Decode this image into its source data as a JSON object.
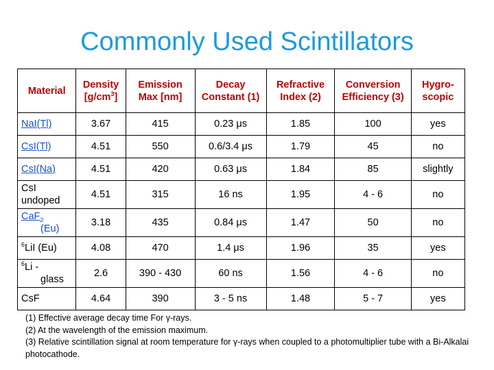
{
  "title": "Commonly Used Scintillators",
  "headers": {
    "material": "Material",
    "density": "Density [g/cm",
    "density_sup": "3",
    "density_end": "]",
    "emission": "Emission Max  [nm]",
    "decay": "Decay Constant (1)",
    "refractive": "Refractive Index (2)",
    "conversion": "Conversion Efficiency (3)",
    "hygro": "Hygro-scopic"
  },
  "rows": [
    {
      "m1": "NaI(Tl)",
      "density": "3.67",
      "emission": "415",
      "decay": "0.23 μs",
      "refractive": "1.85",
      "conversion": "100",
      "hygro": "yes"
    },
    {
      "m1": "CsI(Tl)",
      "density": "4.51",
      "emission": "550",
      "decay": "0.6/3.4 μs",
      "refractive": "1.79",
      "conversion": "45",
      "hygro": "no"
    },
    {
      "m1": "CsI(Na)",
      "density": "4.51",
      "emission": "420",
      "decay": "0.63 μs",
      "refractive": "1.84",
      "conversion": "85",
      "hygro": "slightly"
    },
    {
      "m1": "CsI",
      "m2": "undoped",
      "density": "4.51",
      "emission": "315",
      "decay": "16 ns",
      "refractive": "1.95",
      "conversion": "4 - 6",
      "hygro": "no"
    },
    {
      "m1": "CaF",
      "msub": "2",
      "m2": "(Eu)",
      "density": "3.18",
      "emission": "435",
      "decay": "0.84 μs",
      "refractive": "1.47",
      "conversion": "50",
      "hygro": "no"
    },
    {
      "msup": "6",
      "m1": "LiI (Eu)",
      "density": "4.08",
      "emission": "470",
      "decay": "1.4 μs",
      "refractive": "1.96",
      "conversion": "35",
      "hygro": "yes"
    },
    {
      "msup": "6",
      "m1": "Li -",
      "m2": "glass",
      "density": "2.6",
      "emission": "390 - 430",
      "decay": "60 ns",
      "refractive": "1.56",
      "conversion": "4 - 6",
      "hygro": "no"
    },
    {
      "m1": "CsF",
      "density": "4.64",
      "emission": "390",
      "decay": "3 - 5 ns",
      "refractive": "1.48",
      "conversion": "5 - 7",
      "hygro": "yes"
    }
  ],
  "footnotes": {
    "f1": "(1) Effective average decay time For γ-rays.",
    "f2": "(2) At the wavelength of the emission maximum.",
    "f3": "(3) Relative scintillation signal at room temperature for γ-rays when coupled to a photomultiplier tube with a Bi-Alkalai photocathode."
  },
  "colors": {
    "title": "#1a9be0",
    "header_text": "#c00000",
    "link": "#1a4fd6"
  }
}
